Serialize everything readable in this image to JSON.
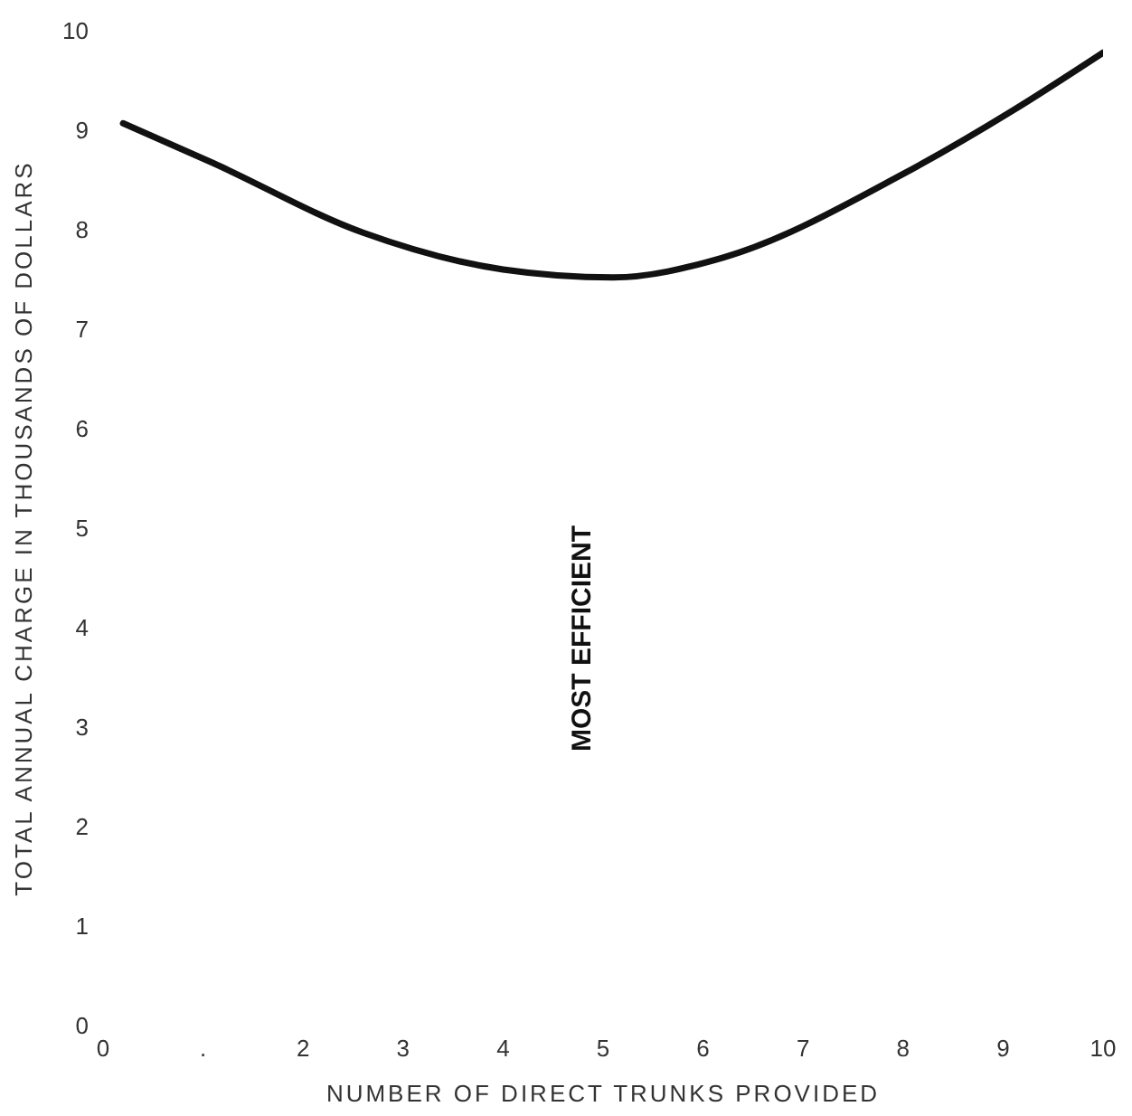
{
  "chart_data": {
    "type": "line",
    "xlabel": "NUMBER OF DIRECT TRUNKS PROVIDED",
    "ylabel": "TOTAL ANNUAL CHARGE IN THOUSANDS OF DOLLARS",
    "x": [
      0.2,
      1.1,
      2.6,
      4,
      5.1,
      6.2,
      8,
      9.1,
      10
    ],
    "series": [
      {
        "color": "#111111",
        "values": [
          9.07,
          8.67,
          7.97,
          7.6,
          7.52,
          7.72,
          8.56,
          9.2,
          9.78
        ]
      }
    ],
    "xlim": [
      0,
      10
    ],
    "xticks": [
      0,
      {
        "value": 1,
        "label": "."
      },
      2,
      3,
      4,
      5,
      6,
      7,
      8,
      9,
      10
    ],
    "ylim": [
      0,
      10
    ],
    "yticks": [
      0,
      1,
      2,
      3,
      4,
      5,
      6,
      7,
      8,
      9,
      10
    ],
    "annotations": [
      "MOST EFFICIENT"
    ]
  }
}
